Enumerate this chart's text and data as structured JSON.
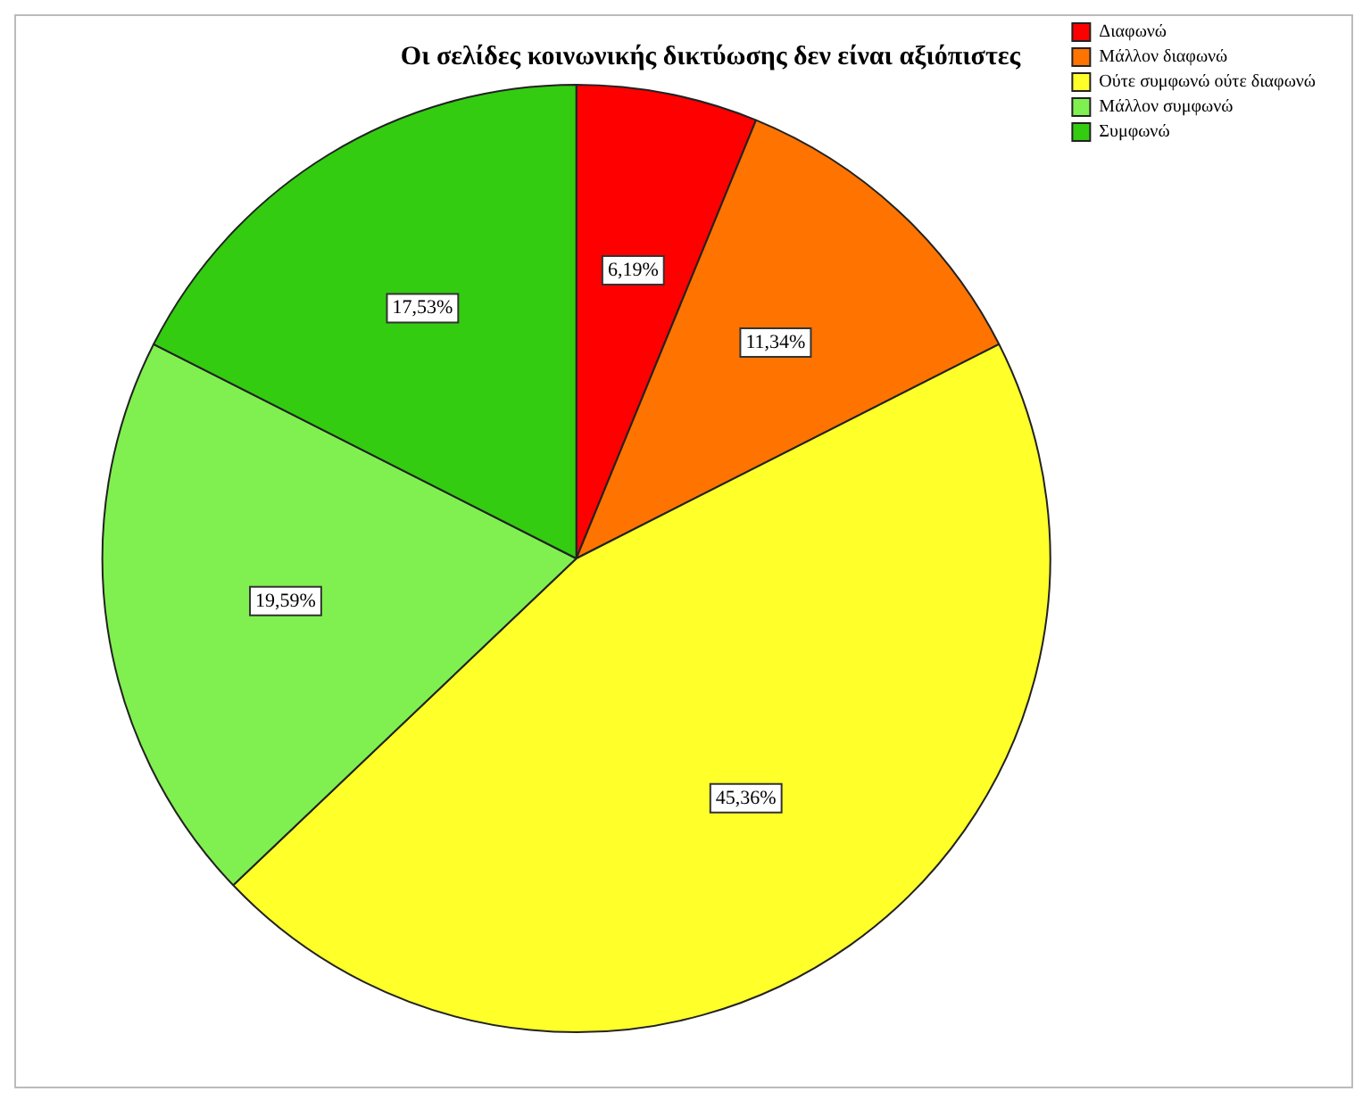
{
  "chart_data": {
    "type": "pie",
    "title": "Οι σελίδες κοινωνικής δικτύωσης δεν είναι αξιόπιστες",
    "categories": [
      "Διαφωνώ",
      "Μάλλον διαφωνώ",
      "Ούτε συμφωνώ ούτε διαφωνώ",
      "Μάλλον συμφωνώ",
      "Συμφωνώ"
    ],
    "values": [
      6.19,
      11.34,
      45.36,
      19.59,
      17.53
    ],
    "colors": [
      "#ff0000",
      "#ff7300",
      "#ffff2a",
      "#80f050",
      "#33cc11"
    ],
    "value_labels": [
      "6,19%",
      "11,34%",
      "45,36%",
      "19,59%",
      "17,53%"
    ],
    "legend": "top right"
  }
}
